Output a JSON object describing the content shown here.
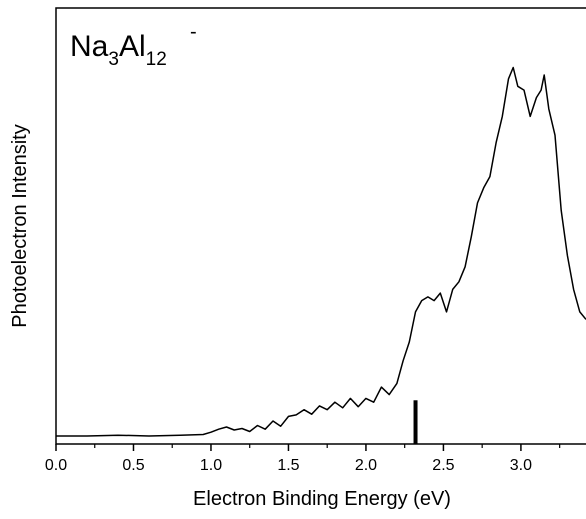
{
  "chart_data": {
    "type": "line",
    "title": "",
    "annotation": {
      "element1": "Na",
      "count1": "3",
      "element2": "Al",
      "count2": "12",
      "charge": "-"
    },
    "xlabel": "Electron Binding Energy (eV)",
    "ylabel": "Photoelectron Intensity",
    "xlim": [
      0.0,
      3.42
    ],
    "ylim": [
      0,
      1.0
    ],
    "x_ticks": [
      "0.0",
      "0.5",
      "1.0",
      "1.5",
      "2.0",
      "2.5",
      "3.0"
    ],
    "grid": false,
    "legend": "none",
    "series": [
      {
        "x": [
          0.0,
          0.2,
          0.4,
          0.6,
          0.8,
          0.95,
          1.0,
          1.05,
          1.1,
          1.15,
          1.2,
          1.25,
          1.3,
          1.35,
          1.4,
          1.45,
          1.5,
          1.55,
          1.6,
          1.65,
          1.7,
          1.75,
          1.8,
          1.85,
          1.9,
          1.95,
          2.0,
          2.05,
          2.1,
          2.15,
          2.2,
          2.24,
          2.28,
          2.32,
          2.36,
          2.4,
          2.44,
          2.48,
          2.52,
          2.56,
          2.6,
          2.64,
          2.68,
          2.72,
          2.76,
          2.8,
          2.84,
          2.88,
          2.92,
          2.95,
          2.98,
          3.02,
          3.06,
          3.1,
          3.13,
          3.15,
          3.18,
          3.22,
          3.26,
          3.3,
          3.34,
          3.38,
          3.42
        ],
        "y": [
          0.0,
          0.0,
          0.002,
          0.0,
          0.002,
          0.004,
          0.01,
          0.018,
          0.024,
          0.016,
          0.02,
          0.012,
          0.028,
          0.018,
          0.04,
          0.026,
          0.052,
          0.056,
          0.07,
          0.058,
          0.08,
          0.07,
          0.09,
          0.075,
          0.1,
          0.078,
          0.1,
          0.09,
          0.13,
          0.11,
          0.14,
          0.2,
          0.25,
          0.33,
          0.36,
          0.37,
          0.36,
          0.38,
          0.33,
          0.39,
          0.41,
          0.45,
          0.53,
          0.62,
          0.66,
          0.69,
          0.78,
          0.85,
          0.95,
          0.98,
          0.93,
          0.92,
          0.85,
          0.9,
          0.92,
          0.96,
          0.87,
          0.8,
          0.6,
          0.48,
          0.39,
          0.33,
          0.31
        ]
      }
    ],
    "marker_bar": {
      "x": 2.32,
      "height": 0.095
    }
  }
}
